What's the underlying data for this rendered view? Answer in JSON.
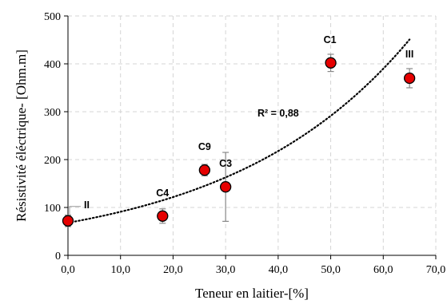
{
  "chart_data": {
    "type": "scatter",
    "xlabel": "Teneur en laitier-[%]",
    "ylabel": "Résistivité éléctrique- [Ohm.m]",
    "xlim": [
      0,
      70
    ],
    "ylim": [
      0,
      500
    ],
    "x_ticks": [
      "0,0",
      "10,0",
      "20,0",
      "30,0",
      "40,0",
      "50,0",
      "60,0",
      "70,0"
    ],
    "y_ticks": [
      "0",
      "100",
      "200",
      "300",
      "400",
      "500"
    ],
    "grid": "dashed, both axes",
    "marker_color": "#e60000",
    "marker_edge": "#000000",
    "errorbar_color": "#888888",
    "points": [
      {
        "label": "II",
        "x": 0,
        "y": 72,
        "err": 12
      },
      {
        "label": "C4",
        "x": 18,
        "y": 82,
        "err": 15
      },
      {
        "label": "C9",
        "x": 26,
        "y": 178,
        "err": 12
      },
      {
        "label": "C3",
        "x": 30,
        "y": 143,
        "err": 72
      },
      {
        "label": "C1",
        "x": 50,
        "y": 402,
        "err": 18
      },
      {
        "label": "III",
        "x": 65,
        "y": 370,
        "err": 20
      }
    ],
    "trendline": {
      "type": "exponential",
      "style": "dotted",
      "a": 68,
      "b": 0.0291,
      "x_range": [
        0,
        65
      ],
      "r_squared_label": "R² = 0,88"
    }
  }
}
